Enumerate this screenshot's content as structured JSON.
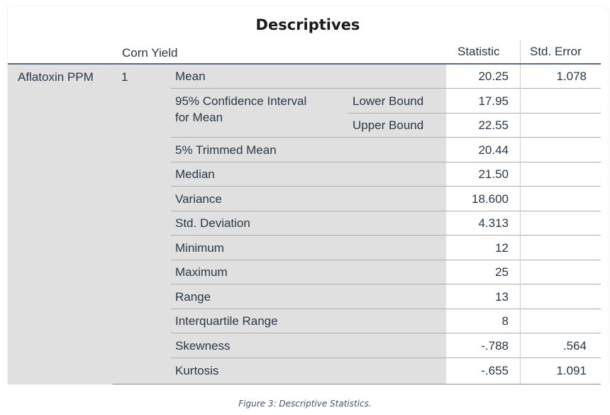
{
  "table": {
    "title": "Descriptives",
    "header": {
      "group_label": "Corn Yield",
      "statistic": "Statistic",
      "std_error": "Std. Error"
    },
    "variable": "Aflatoxin PPM",
    "group_value": "1",
    "rows": [
      {
        "label": "Mean",
        "sub": "",
        "statistic": "20.25",
        "std_error": "1.078"
      },
      {
        "label": "95% Confidence Interval",
        "label2": "for Mean",
        "sub": "Lower Bound",
        "statistic": "17.95",
        "std_error": ""
      },
      {
        "label": "",
        "sub": "Upper Bound",
        "statistic": "22.55",
        "std_error": ""
      },
      {
        "label": "5% Trimmed Mean",
        "sub": "",
        "statistic": "20.44",
        "std_error": ""
      },
      {
        "label": "Median",
        "sub": "",
        "statistic": "21.50",
        "std_error": ""
      },
      {
        "label": "Variance",
        "sub": "",
        "statistic": "18.600",
        "std_error": ""
      },
      {
        "label": "Std. Deviation",
        "sub": "",
        "statistic": "4.313",
        "std_error": ""
      },
      {
        "label": "Minimum",
        "sub": "",
        "statistic": "12",
        "std_error": ""
      },
      {
        "label": "Maximum",
        "sub": "",
        "statistic": "25",
        "std_error": ""
      },
      {
        "label": "Range",
        "sub": "",
        "statistic": "13",
        "std_error": ""
      },
      {
        "label": "Interquartile Range",
        "sub": "",
        "statistic": "8",
        "std_error": ""
      },
      {
        "label": "Skewness",
        "sub": "",
        "statistic": "-.788",
        "std_error": ".564"
      },
      {
        "label": "Kurtosis",
        "sub": "",
        "statistic": "-.655",
        "std_error": "1.091"
      }
    ]
  },
  "caption": "Figure 3: Descriptive Statistics."
}
